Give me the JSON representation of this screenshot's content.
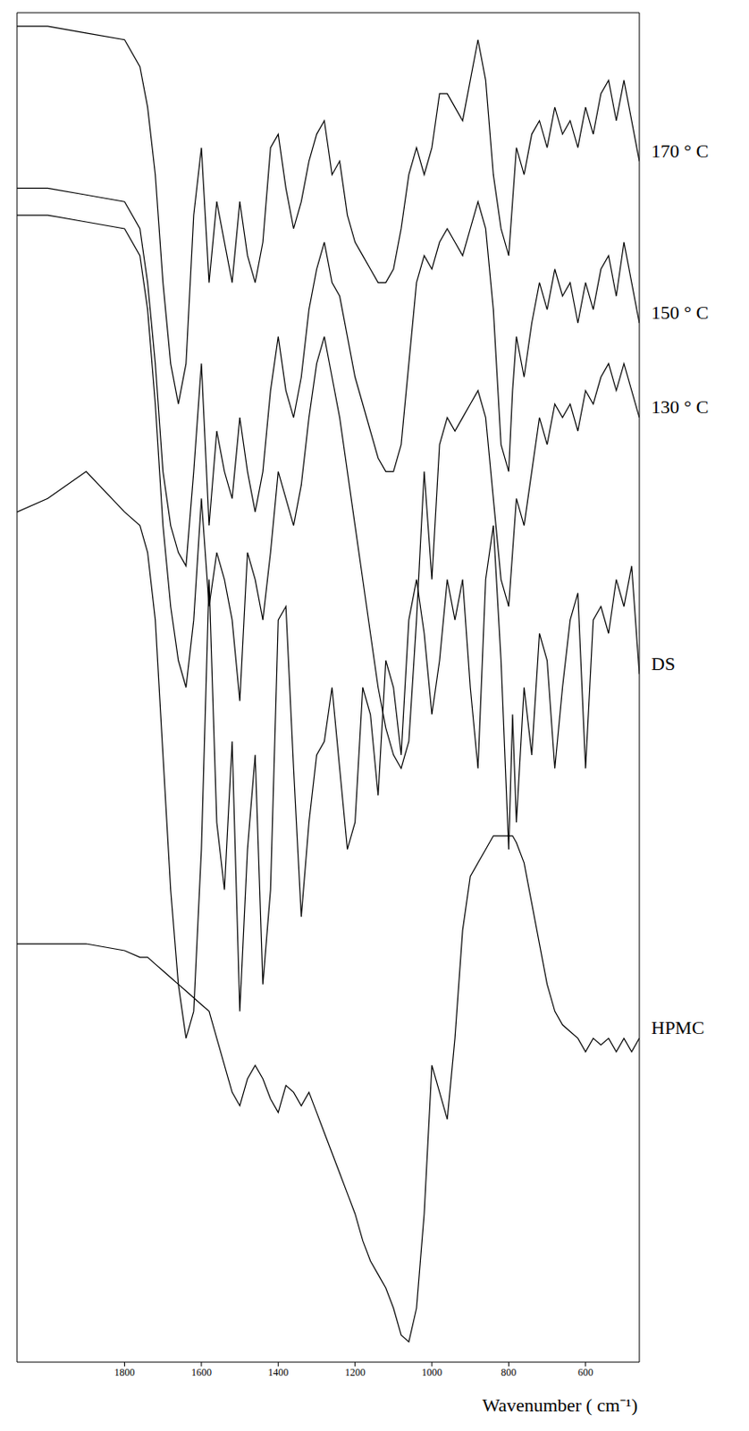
{
  "chart_data": {
    "type": "line",
    "x_label": "Wavenumber ( cm⁻¹)",
    "xlim": [
      2080,
      460
    ],
    "xticks": [
      1800,
      1600,
      1400,
      1200,
      1000,
      800,
      600
    ],
    "ylim": [
      0,
      100
    ],
    "yticks": [],
    "tick_labels": "x",
    "grid": false,
    "x": [
      2080,
      2000,
      1900,
      1800,
      1760,
      1740,
      1720,
      1700,
      1680,
      1660,
      1640,
      1620,
      1600,
      1580,
      1560,
      1540,
      1520,
      1500,
      1480,
      1460,
      1440,
      1420,
      1400,
      1380,
      1360,
      1340,
      1320,
      1300,
      1280,
      1260,
      1240,
      1220,
      1200,
      1180,
      1160,
      1140,
      1120,
      1100,
      1080,
      1060,
      1040,
      1020,
      1000,
      980,
      960,
      940,
      920,
      900,
      880,
      860,
      840,
      820,
      800,
      790,
      780,
      760,
      740,
      720,
      700,
      680,
      660,
      640,
      620,
      600,
      580,
      560,
      540,
      520,
      500,
      480,
      460
    ],
    "series": [
      {
        "name": "170 ° C",
        "color": "#000000",
        "values": [
          99,
          99,
          98.5,
          98,
          96,
          93,
          88,
          80,
          74,
          71,
          74,
          85,
          90,
          80,
          86,
          83,
          80,
          86,
          82,
          80,
          83,
          90,
          91,
          87,
          84,
          86,
          89,
          91,
          92,
          88,
          89,
          85,
          83,
          82,
          81,
          80,
          80,
          81,
          84,
          88,
          90,
          88,
          90,
          94,
          94,
          93,
          92,
          95,
          98,
          95,
          88,
          84,
          82,
          86,
          90,
          88,
          91,
          92,
          90,
          93,
          91,
          92,
          90,
          93,
          91,
          94,
          95,
          92,
          95,
          92,
          89
        ]
      },
      {
        "name": "150 ° C",
        "color": "#000000",
        "values": [
          87,
          87,
          86.5,
          86,
          84,
          80,
          74,
          66,
          62,
          60,
          59,
          66,
          74,
          62,
          69,
          66,
          64,
          70,
          66,
          63,
          66,
          72,
          76,
          72,
          70,
          73,
          78,
          81,
          83,
          80,
          79,
          76,
          73,
          71,
          69,
          67,
          66,
          66,
          68,
          74,
          80,
          82,
          81,
          83,
          84,
          83,
          82,
          84,
          86,
          84,
          78,
          68,
          66,
          72,
          76,
          73,
          77,
          80,
          78,
          81,
          79,
          80,
          77,
          80,
          78,
          81,
          82,
          79,
          83,
          80,
          77
        ]
      },
      {
        "name": "130 ° C",
        "color": "#000000",
        "values": [
          85,
          85,
          84.5,
          84,
          82,
          78,
          71,
          62,
          56,
          52,
          50,
          55,
          64,
          56,
          60,
          58,
          55,
          49,
          60,
          58,
          55,
          60,
          66,
          64,
          62,
          65,
          70,
          74,
          76,
          73,
          70,
          66,
          62,
          58,
          54,
          50,
          47,
          45,
          44,
          46,
          55,
          66,
          58,
          68,
          70,
          69,
          70,
          71,
          72,
          70,
          64,
          58,
          56,
          60,
          64,
          62,
          66,
          70,
          68,
          71,
          70,
          71,
          69,
          72,
          71,
          73,
          74,
          72,
          74,
          72,
          70
        ]
      },
      {
        "name": "DS",
        "color": "#000000",
        "values": [
          63,
          64,
          66,
          63,
          62,
          60,
          55,
          45,
          35,
          28,
          24,
          26,
          38,
          58,
          40,
          35,
          46,
          26,
          38,
          45,
          28,
          35,
          55,
          56,
          44,
          33,
          40,
          45,
          46,
          50,
          44,
          38,
          40,
          50,
          48,
          42,
          52,
          50,
          45,
          55,
          58,
          54,
          48,
          52,
          58,
          55,
          58,
          50,
          44,
          58,
          62,
          52,
          38,
          48,
          40,
          50,
          45,
          54,
          52,
          44,
          50,
          55,
          57,
          44,
          55,
          56,
          54,
          58,
          56,
          59,
          51
        ]
      },
      {
        "name": "HPMC",
        "color": "#000000",
        "values": [
          31,
          31,
          31,
          30.5,
          30,
          30,
          29.5,
          29,
          28.5,
          28,
          27.5,
          27,
          26.5,
          26,
          24,
          22,
          20,
          19,
          21,
          22,
          21,
          19.5,
          18.5,
          20.5,
          20,
          19,
          20,
          18.5,
          17,
          15.5,
          14,
          12.5,
          11,
          9,
          7.5,
          6.5,
          5.5,
          4,
          2,
          1.5,
          4,
          11,
          22,
          20,
          18,
          24,
          32,
          36,
          37,
          38,
          39,
          39,
          39,
          39,
          38.5,
          37,
          34,
          31,
          28,
          26,
          25,
          24.5,
          24,
          23,
          24,
          23.5,
          24,
          23,
          24,
          23,
          24
        ]
      }
    ]
  }
}
